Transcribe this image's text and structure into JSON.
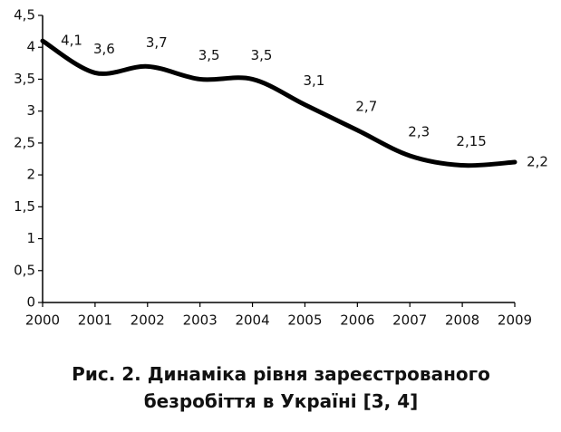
{
  "chart_data": {
    "type": "line",
    "title": "Рис. 2. Динаміка рівня зареєстрованого безробіття в Україні [3, 4]",
    "x": [
      2000,
      2001,
      2002,
      2003,
      2004,
      2005,
      2006,
      2007,
      2008,
      2009
    ],
    "values": [
      4.1,
      3.6,
      3.7,
      3.5,
      3.5,
      3.1,
      2.7,
      2.3,
      2.15,
      2.2
    ],
    "value_labels": [
      "4,1",
      "3,6",
      "3,7",
      "3,5",
      "3,5",
      "3,1",
      "2,7",
      "2,3",
      "2,15",
      "2,2"
    ],
    "color": "#000000",
    "xlim": [
      2000,
      2009
    ],
    "xticks": [
      2000,
      2001,
      2002,
      2003,
      2004,
      2005,
      2006,
      2007,
      2008,
      2009
    ],
    "ylim": [
      0,
      4.5
    ],
    "yticks": [
      0,
      {
        "value": 0.5,
        "label": "0,5"
      },
      1,
      {
        "value": 1.5,
        "label": "1,5"
      },
      2,
      {
        "value": 2.5,
        "label": "2,5"
      },
      3,
      {
        "value": 3.5,
        "label": "3,5"
      },
      4,
      {
        "value": 4.5,
        "label": "4,5"
      }
    ],
    "grid": false
  }
}
